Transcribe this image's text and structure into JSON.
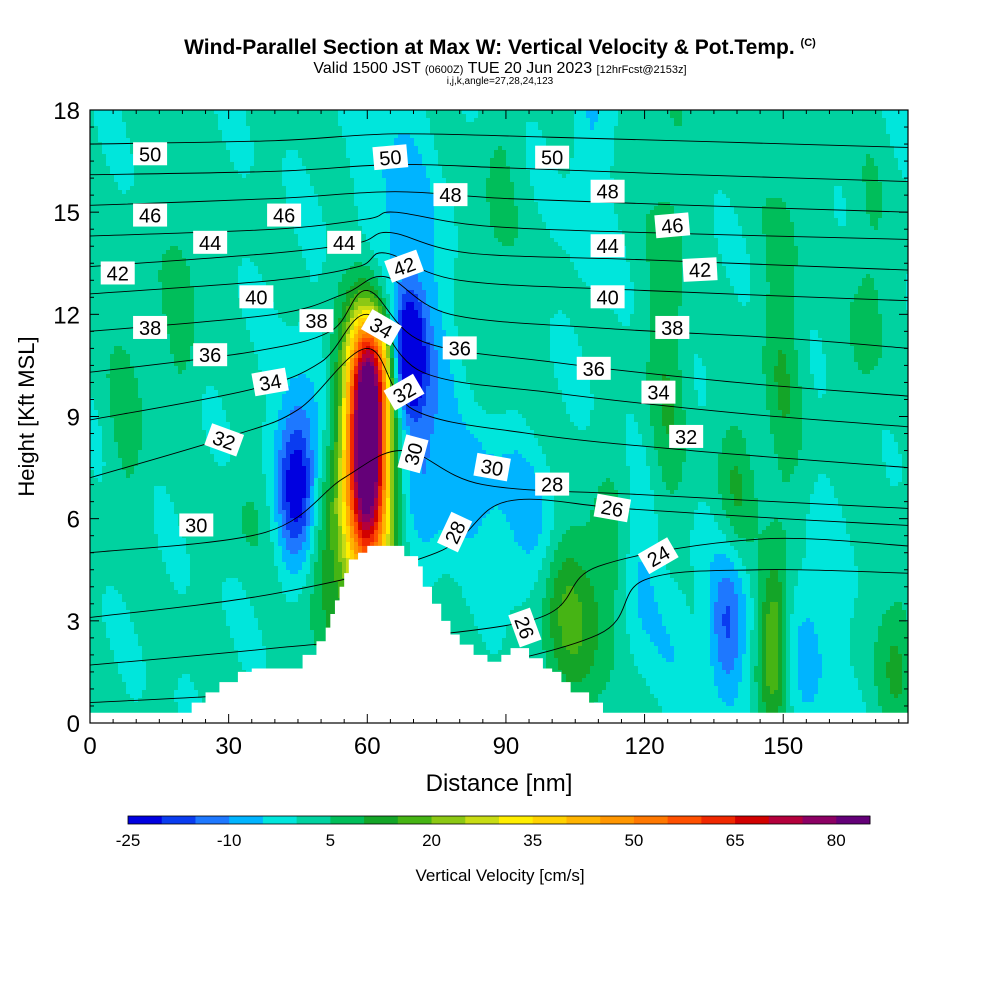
{
  "chart_data": {
    "type": "heatmap",
    "title": "Wind-Parallel Section at Max W: Vertical Velocity & Pot.Temp.",
    "title_mark": "(C)",
    "subtitle": {
      "main_a": "Valid 1500 JST",
      "small_a": "(0600Z)",
      "main_b": "TUE 20 Jun 2023",
      "small_b": "[12hrFcst@2153z]"
    },
    "subtitle2": "i,j,k,angle=27,28,24,123",
    "xlabel": "Distance [nm]",
    "ylabel": "Height [Kft MSL]",
    "xlim": [
      0,
      177
    ],
    "ylim": [
      0,
      18
    ],
    "xticks": [
      0,
      30,
      60,
      90,
      120,
      150
    ],
    "yticks": [
      0,
      3,
      6,
      9,
      12,
      15,
      18
    ],
    "colorbar": {
      "label": "Vertical Velocity [cm/s]",
      "levels": [
        -25,
        -20,
        -15,
        -10,
        -5,
        0,
        5,
        10,
        15,
        20,
        25,
        30,
        35,
        40,
        45,
        50,
        55,
        60,
        65,
        70,
        75,
        80,
        85
      ],
      "tick_labels": [
        "-25",
        "-10",
        "5",
        "20",
        "35",
        "50",
        "65",
        "80"
      ],
      "tick_values": [
        -25,
        -10,
        5,
        20,
        35,
        50,
        65,
        80
      ],
      "colors": [
        "#0000e0",
        "#0a3cf0",
        "#1e78ff",
        "#00b4ff",
        "#00e6dc",
        "#00d2a0",
        "#00be5a",
        "#14a528",
        "#46b414",
        "#8cc814",
        "#c8dc14",
        "#ffee00",
        "#ffd200",
        "#ffb400",
        "#ff9600",
        "#ff7800",
        "#ff5000",
        "#f02800",
        "#d20000",
        "#b4003c",
        "#8c0064",
        "#640078"
      ]
    },
    "terrain": [
      [
        0,
        0.3
      ],
      [
        20,
        0.3
      ],
      [
        22,
        0.6
      ],
      [
        25,
        0.9
      ],
      [
        28,
        1.2
      ],
      [
        32,
        1.5
      ],
      [
        35,
        1.6
      ],
      [
        45,
        1.6
      ],
      [
        46,
        2.0
      ],
      [
        48,
        2.0
      ],
      [
        49,
        2.4
      ],
      [
        51,
        2.8
      ],
      [
        52,
        3.2
      ],
      [
        53,
        3.6
      ],
      [
        54,
        4.0
      ],
      [
        55,
        4.4
      ],
      [
        56,
        4.8
      ],
      [
        58,
        5.0
      ],
      [
        59,
        5.0
      ],
      [
        60,
        5.2
      ],
      [
        67,
        5.2
      ],
      [
        68,
        4.9
      ],
      [
        71,
        4.6
      ],
      [
        72,
        4.0
      ],
      [
        74,
        3.5
      ],
      [
        76,
        3.0
      ],
      [
        78,
        2.6
      ],
      [
        80,
        2.3
      ],
      [
        83,
        2.0
      ],
      [
        86,
        1.8
      ],
      [
        87,
        1.8
      ],
      [
        89,
        2.0
      ],
      [
        91,
        2.2
      ],
      [
        93,
        2.2
      ],
      [
        95,
        1.9
      ],
      [
        98,
        1.6
      ],
      [
        100,
        1.5
      ],
      [
        102,
        1.2
      ],
      [
        104,
        0.9
      ],
      [
        108,
        0.6
      ],
      [
        111,
        0.3
      ],
      [
        177,
        0.3
      ]
    ],
    "w_features": [
      {
        "x": 60,
        "y": 8.0,
        "sx": 3.2,
        "sy": 2.4,
        "w": 78
      },
      {
        "x": 59,
        "y": 7.0,
        "sx": 5.0,
        "sy": 3.6,
        "w": 22
      },
      {
        "x": 61,
        "y": 10.5,
        "sx": 3.0,
        "sy": 1.2,
        "w": 25
      },
      {
        "x": 50,
        "y": 5.0,
        "sx": 4.0,
        "sy": 2.0,
        "w": 10
      },
      {
        "x": 45,
        "y": 7.0,
        "sx": 3.0,
        "sy": 1.6,
        "w": -25
      },
      {
        "x": 49,
        "y": 7.5,
        "sx": 6.0,
        "sy": 3.0,
        "w": -6
      },
      {
        "x": 69,
        "y": 10.8,
        "sx": 2.2,
        "sy": 1.2,
        "w": -28
      },
      {
        "x": 72,
        "y": 9.0,
        "sx": 4.0,
        "sy": 2.5,
        "w": -12
      },
      {
        "x": 66,
        "y": 14.0,
        "sx": 6.0,
        "sy": 3.0,
        "w": -10
      },
      {
        "x": 82,
        "y": 7.0,
        "sx": 6.0,
        "sy": 1.2,
        "w": -10
      },
      {
        "x": 95,
        "y": 5.8,
        "sx": 5.0,
        "sy": 1.5,
        "w": -8
      },
      {
        "x": 103,
        "y": 3.0,
        "sx": 4.0,
        "sy": 2.0,
        "w": 14
      },
      {
        "x": 112,
        "y": 4.0,
        "sx": 4.0,
        "sy": 2.0,
        "w": 9
      },
      {
        "x": 118,
        "y": 4.5,
        "sx": 3.0,
        "sy": 1.6,
        "w": -8
      },
      {
        "x": 125,
        "y": 3.0,
        "sx": 5.0,
        "sy": 2.0,
        "w": -6
      },
      {
        "x": 138,
        "y": 2.8,
        "sx": 3.0,
        "sy": 1.5,
        "w": -16
      },
      {
        "x": 148,
        "y": 2.4,
        "sx": 2.2,
        "sy": 1.6,
        "w": 20
      },
      {
        "x": 156,
        "y": 2.5,
        "sx": 4.0,
        "sy": 2.0,
        "w": -8
      },
      {
        "x": 175,
        "y": 2.0,
        "sx": 3.0,
        "sy": 1.5,
        "w": 10
      },
      {
        "x": 108,
        "y": 16.5,
        "sx": 3.0,
        "sy": 3.0,
        "w": -6
      },
      {
        "x": 125,
        "y": 11.0,
        "sx": 3.0,
        "sy": 5.0,
        "w": 8
      },
      {
        "x": 150,
        "y": 11.0,
        "sx": 3.0,
        "sy": 4.0,
        "w": 8
      },
      {
        "x": 20,
        "y": 12.5,
        "sx": 3.0,
        "sy": 2.5,
        "w": 6
      },
      {
        "x": 168,
        "y": 12.0,
        "sx": 3.0,
        "sy": 3.0,
        "w": 6
      },
      {
        "x": 140,
        "y": 7.0,
        "sx": 3.0,
        "sy": 1.5,
        "w": 8
      },
      {
        "x": 88,
        "y": 15.0,
        "sx": 3.0,
        "sy": 3.0,
        "w": 5
      },
      {
        "x": 8,
        "y": 9.0,
        "sx": 3.0,
        "sy": 2.0,
        "w": 6
      },
      {
        "x": 35,
        "y": 6.2,
        "sx": 5.0,
        "sy": 1.0,
        "w": 4
      }
    ],
    "isentropes": [
      {
        "value": 24,
        "pts": [
          [
            0,
            0.6
          ],
          [
            40,
            0.9
          ],
          [
            75,
            1.4
          ],
          [
            110,
            2.6
          ],
          [
            120,
            4.2
          ],
          [
            145,
            4.5
          ],
          [
            177,
            4.4
          ]
        ]
      },
      {
        "value": 26,
        "pts": [
          [
            0,
            1.7
          ],
          [
            40,
            2.2
          ],
          [
            95,
            3.0
          ],
          [
            110,
            4.6
          ],
          [
            145,
            5.4
          ],
          [
            177,
            5.2
          ]
        ]
      },
      {
        "value": 28,
        "pts": [
          [
            0,
            3.1
          ],
          [
            40,
            3.8
          ],
          [
            75,
            5.0
          ],
          [
            90,
            6.5
          ],
          [
            115,
            6.3
          ],
          [
            150,
            6.0
          ],
          [
            177,
            5.8
          ]
        ]
      },
      {
        "value": 30,
        "pts": [
          [
            0,
            5.0
          ],
          [
            38,
            5.6
          ],
          [
            55,
            7.2
          ],
          [
            68,
            8.0
          ],
          [
            85,
            7.0
          ],
          [
            120,
            6.7
          ],
          [
            177,
            6.3
          ]
        ]
      },
      {
        "value": 32,
        "pts": [
          [
            0,
            7.2
          ],
          [
            30,
            8.4
          ],
          [
            45,
            9.2
          ],
          [
            60,
            11.0
          ],
          [
            70,
            9.2
          ],
          [
            95,
            8.5
          ],
          [
            130,
            8.0
          ],
          [
            177,
            7.5
          ]
        ]
      },
      {
        "value": 34,
        "pts": [
          [
            0,
            8.9
          ],
          [
            35,
            9.8
          ],
          [
            50,
            10.6
          ],
          [
            60,
            12.0
          ],
          [
            72,
            10.3
          ],
          [
            100,
            9.7
          ],
          [
            140,
            9.1
          ],
          [
            177,
            8.7
          ]
        ]
      },
      {
        "value": 36,
        "pts": [
          [
            0,
            10.3
          ],
          [
            35,
            10.9
          ],
          [
            52,
            11.5
          ],
          [
            60,
            12.7
          ],
          [
            72,
            11.2
          ],
          [
            100,
            10.6
          ],
          [
            140,
            10.0
          ],
          [
            177,
            9.6
          ]
        ]
      },
      {
        "value": 38,
        "pts": [
          [
            0,
            11.5
          ],
          [
            40,
            12.0
          ],
          [
            55,
            12.6
          ],
          [
            64,
            13.1
          ],
          [
            78,
            12.0
          ],
          [
            110,
            11.6
          ],
          [
            150,
            11.3
          ],
          [
            177,
            11.0
          ]
        ]
      },
      {
        "value": 40,
        "pts": [
          [
            0,
            12.6
          ],
          [
            40,
            13.0
          ],
          [
            58,
            13.4
          ],
          [
            64,
            13.8
          ],
          [
            80,
            13.0
          ],
          [
            120,
            12.7
          ],
          [
            177,
            12.4
          ]
        ]
      },
      {
        "value": 42,
        "pts": [
          [
            0,
            13.4
          ],
          [
            40,
            13.8
          ],
          [
            58,
            14.1
          ],
          [
            65,
            14.4
          ],
          [
            82,
            13.8
          ],
          [
            120,
            13.6
          ],
          [
            177,
            13.3
          ]
        ]
      },
      {
        "value": 44,
        "pts": [
          [
            0,
            14.3
          ],
          [
            40,
            14.5
          ],
          [
            60,
            14.8
          ],
          [
            66,
            15.0
          ],
          [
            85,
            14.6
          ],
          [
            120,
            14.4
          ],
          [
            177,
            14.2
          ]
        ]
      },
      {
        "value": 46,
        "pts": [
          [
            0,
            15.2
          ],
          [
            40,
            15.4
          ],
          [
            66,
            15.6
          ],
          [
            90,
            15.4
          ],
          [
            130,
            15.2
          ],
          [
            177,
            15.0
          ]
        ]
      },
      {
        "value": 48,
        "pts": [
          [
            0,
            16.1
          ],
          [
            40,
            16.2
          ],
          [
            66,
            16.4
          ],
          [
            90,
            16.3
          ],
          [
            130,
            16.1
          ],
          [
            177,
            15.9
          ]
        ]
      },
      {
        "value": 50,
        "pts": [
          [
            0,
            17.0
          ],
          [
            40,
            17.1
          ],
          [
            66,
            17.3
          ],
          [
            100,
            17.2
          ],
          [
            177,
            16.9
          ]
        ]
      }
    ],
    "contour_labels": [
      {
        "text": "50",
        "x": 13,
        "y": 16.7,
        "rot": 0
      },
      {
        "text": "50",
        "x": 65,
        "y": 16.6,
        "rot": -5
      },
      {
        "text": "50",
        "x": 100,
        "y": 16.6,
        "rot": 0
      },
      {
        "text": "48",
        "x": 78,
        "y": 15.5,
        "rot": 0
      },
      {
        "text": "48",
        "x": 112,
        "y": 15.6,
        "rot": 0
      },
      {
        "text": "46",
        "x": 13,
        "y": 14.9,
        "rot": 0
      },
      {
        "text": "46",
        "x": 42,
        "y": 14.9,
        "rot": 0
      },
      {
        "text": "46",
        "x": 126,
        "y": 14.6,
        "rot": -5
      },
      {
        "text": "44",
        "x": 26,
        "y": 14.1,
        "rot": 0
      },
      {
        "text": "44",
        "x": 55,
        "y": 14.1,
        "rot": 0
      },
      {
        "text": "44",
        "x": 112,
        "y": 14.0,
        "rot": 0
      },
      {
        "text": "42",
        "x": 6,
        "y": 13.2,
        "rot": 0
      },
      {
        "text": "42",
        "x": 68,
        "y": 13.4,
        "rot": -20
      },
      {
        "text": "42",
        "x": 132,
        "y": 13.3,
        "rot": -3
      },
      {
        "text": "40",
        "x": 36,
        "y": 12.5,
        "rot": 0
      },
      {
        "text": "40",
        "x": 112,
        "y": 12.5,
        "rot": 0
      },
      {
        "text": "38",
        "x": 13,
        "y": 11.6,
        "rot": 0
      },
      {
        "text": "38",
        "x": 49,
        "y": 11.8,
        "rot": 0
      },
      {
        "text": "38",
        "x": 126,
        "y": 11.6,
        "rot": 0
      },
      {
        "text": "34",
        "x": 63,
        "y": 11.6,
        "rot": 30
      },
      {
        "text": "36",
        "x": 26,
        "y": 10.8,
        "rot": 0
      },
      {
        "text": "36",
        "x": 80,
        "y": 11.0,
        "rot": 0
      },
      {
        "text": "36",
        "x": 109,
        "y": 10.4,
        "rot": 0
      },
      {
        "text": "34",
        "x": 39,
        "y": 10.0,
        "rot": -10
      },
      {
        "text": "34",
        "x": 123,
        "y": 9.7,
        "rot": 0
      },
      {
        "text": "32",
        "x": 68,
        "y": 9.7,
        "rot": -30
      },
      {
        "text": "32",
        "x": 29,
        "y": 8.3,
        "rot": 20
      },
      {
        "text": "32",
        "x": 129,
        "y": 8.4,
        "rot": 0
      },
      {
        "text": "30",
        "x": 70,
        "y": 7.9,
        "rot": -75
      },
      {
        "text": "30",
        "x": 87,
        "y": 7.5,
        "rot": 10
      },
      {
        "text": "28",
        "x": 100,
        "y": 7.0,
        "rot": 0
      },
      {
        "text": "26",
        "x": 113,
        "y": 6.3,
        "rot": 10
      },
      {
        "text": "30",
        "x": 23,
        "y": 5.8,
        "rot": 0
      },
      {
        "text": "28",
        "x": 79,
        "y": 5.6,
        "rot": -65
      },
      {
        "text": "24",
        "x": 123,
        "y": 4.9,
        "rot": -30
      },
      {
        "text": "26",
        "x": 94,
        "y": 2.8,
        "rot": 70
      }
    ]
  }
}
